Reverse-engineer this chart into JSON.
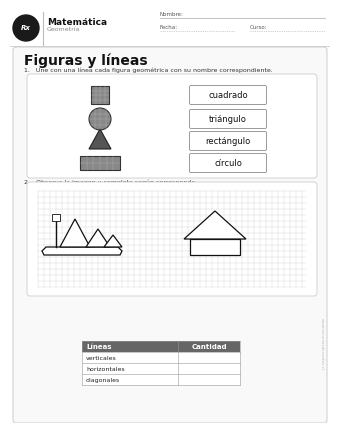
{
  "title": "Figuras y líneas",
  "header_subject": "Matemática",
  "header_sub": "Geometría",
  "header_nombre": "Nombre:",
  "header_fecha": "Fecha:",
  "header_curso": "Curso:",
  "q1_text": "1.   Une con una línea cada figura geométrica con su nombre correspondiente.",
  "q2_text": "2.   Observa la imagen y completa según corresponda.",
  "shape_labels": [
    "cuadrado",
    "triángulo",
    "rectángulo",
    "círculo"
  ],
  "table_header": [
    "Líneas",
    "Cantidad"
  ],
  "table_rows": [
    "verticales",
    "horizontales",
    "diagonales"
  ],
  "website": "www.recursosdocentes.cl",
  "bg_white": "#ffffff",
  "bg_light": "#f7f7f7",
  "border_gray": "#bbbbbb",
  "text_dark": "#111111",
  "text_mid": "#444444",
  "text_light": "#888888",
  "shape_fill": "#888888",
  "shape_dark": "#444444",
  "shape_grid": "#aaaaaa",
  "table_hdr_bg": "#666666",
  "header_line": "#cccccc"
}
